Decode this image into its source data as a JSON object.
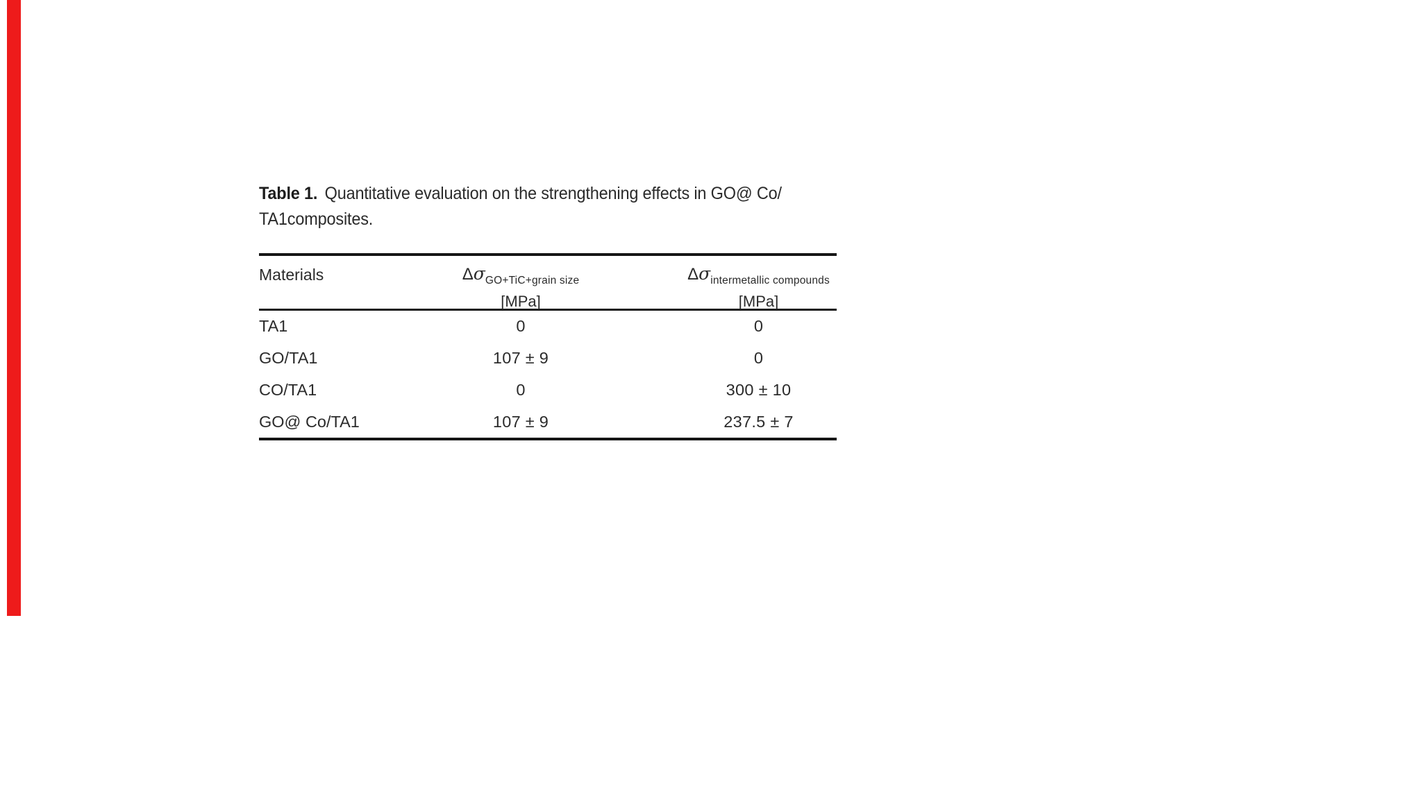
{
  "page": {
    "background": "#ffffff",
    "text_color": "#2b2b2b",
    "rule_color": "#161616"
  },
  "decoration": {
    "red_bar_color": "#ee1b1b"
  },
  "caption": {
    "label": "Table 1.",
    "line1": "Quantitative evaluation on the strengthening effects in GO@ Co/",
    "line2": "TA1composites."
  },
  "table": {
    "columns": {
      "materials": {
        "label": "Materials"
      },
      "go_tic_grain": {
        "delta": "Δ",
        "sigma": "σ",
        "subscript": "GO+TiC+grain size",
        "unit": "[MPa]"
      },
      "intermetallic": {
        "delta": "Δ",
        "sigma": "σ",
        "subscript": "intermetallic compounds",
        "unit": "[MPa]"
      }
    },
    "rows": [
      {
        "material": "TA1",
        "go_tic_grain": "0",
        "intermetallic": "0"
      },
      {
        "material": "GO/TA1",
        "go_tic_grain": "107 ± 9",
        "intermetallic": "0"
      },
      {
        "material": "CO/TA1",
        "go_tic_grain": "0",
        "intermetallic": "300 ± 10"
      },
      {
        "material": "GO@ Co/TA1",
        "go_tic_grain": "107 ± 9",
        "intermetallic": "237.5 ± 7"
      }
    ]
  }
}
